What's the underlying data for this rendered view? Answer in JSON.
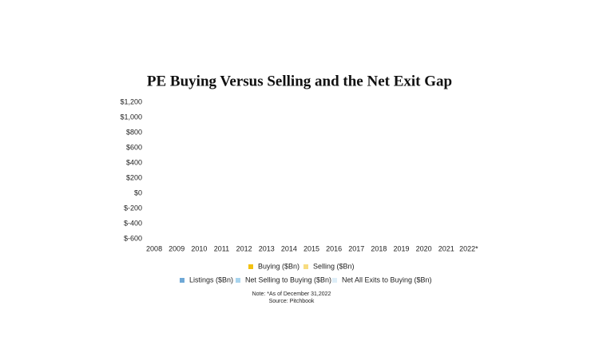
{
  "chart_data": {
    "type": "bar",
    "title": "PE Buying Versus Selling and the Net Exit Gap",
    "categories": [
      "2008",
      "2009",
      "2010",
      "2011",
      "2012",
      "2013",
      "2014",
      "2015",
      "2016",
      "2017",
      "2018",
      "2019",
      "2020",
      "2021",
      "2022*"
    ],
    "series": [
      {
        "name": "Buying ($Bn)",
        "color": "#f2c110",
        "values": [
          null,
          null,
          null,
          null,
          null,
          null,
          null,
          null,
          null,
          null,
          null,
          null,
          null,
          null,
          null
        ]
      },
      {
        "name": "Selling ($Bn)",
        "color": "#f7dc80",
        "values": [
          null,
          null,
          null,
          null,
          null,
          null,
          null,
          null,
          null,
          null,
          null,
          null,
          null,
          null,
          null
        ]
      },
      {
        "name": "Listings ($Bn)",
        "color": "#6fa8d6",
        "values": [
          null,
          null,
          null,
          null,
          null,
          null,
          null,
          null,
          null,
          null,
          null,
          null,
          null,
          null,
          null
        ]
      },
      {
        "name": "Net Selling to Buying ($Bn)",
        "color": "#a8d4ee",
        "values": [
          null,
          null,
          null,
          null,
          null,
          null,
          null,
          null,
          null,
          null,
          null,
          null,
          null,
          null,
          null
        ]
      },
      {
        "name": "Net All Exits to Buying ($Bn)",
        "color": "#ddeef8",
        "values": [
          null,
          null,
          null,
          null,
          null,
          null,
          null,
          null,
          null,
          null,
          null,
          null,
          null,
          null,
          null
        ]
      }
    ],
    "ylim": [
      -600,
      1200
    ],
    "yticks": [
      {
        "value": -600,
        "label": "$-600"
      },
      {
        "value": -400,
        "label": "$-400"
      },
      {
        "value": -200,
        "label": "$-200"
      },
      {
        "value": 0,
        "label": "$0"
      },
      {
        "value": 200,
        "label": "$200"
      },
      {
        "value": 400,
        "label": "$400"
      },
      {
        "value": 600,
        "label": "$600"
      },
      {
        "value": 800,
        "label": "$800"
      },
      {
        "value": 1000,
        "label": "$1,000"
      },
      {
        "value": 1200,
        "label": "$1,200"
      }
    ],
    "grid": false,
    "notes": [
      "Note: *As of December 31,2022",
      "Source: Pitchbook"
    ]
  }
}
